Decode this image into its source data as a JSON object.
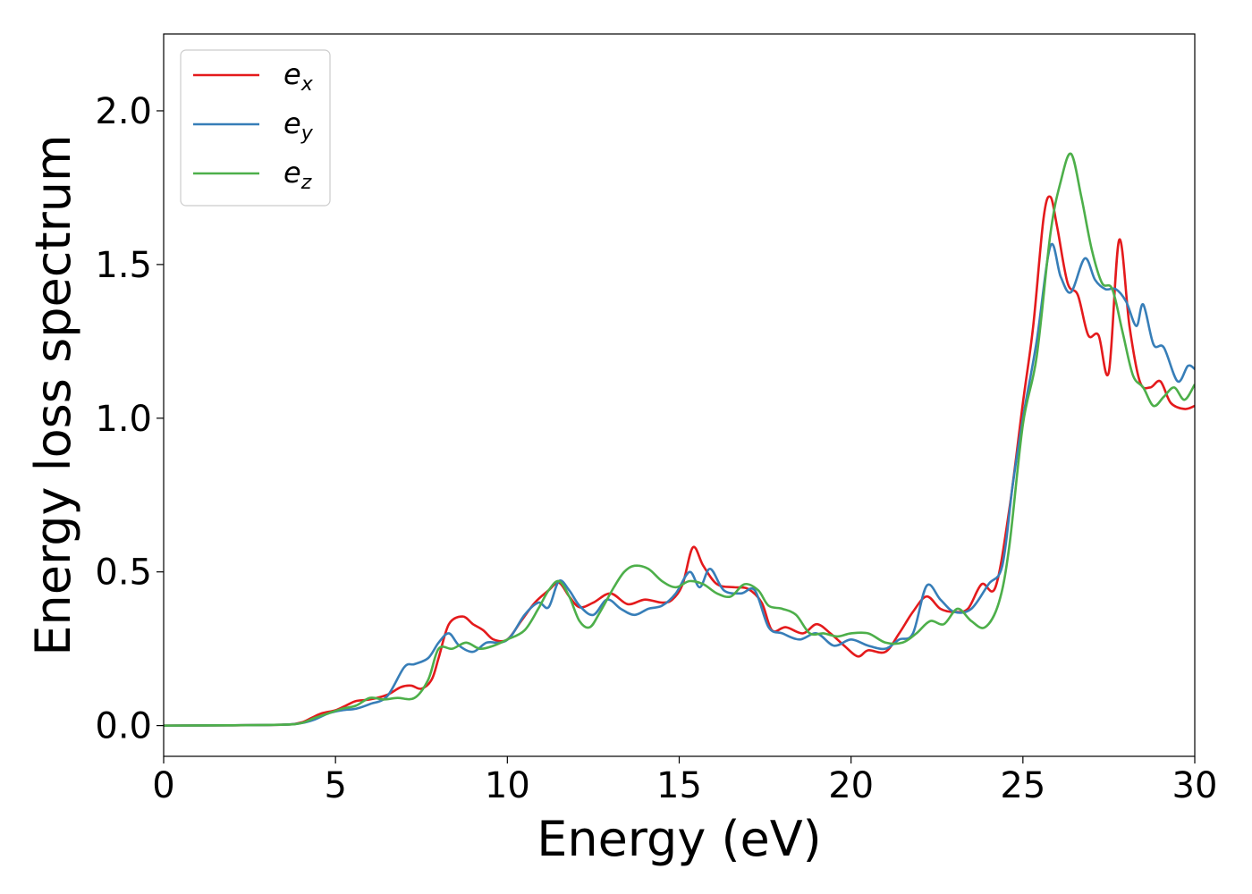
{
  "chart_data": {
    "type": "line",
    "title": "",
    "xlabel": "Energy (eV)",
    "ylabel": "Energy loss spectrum",
    "xlim": [
      0,
      30
    ],
    "ylim": [
      -0.1,
      2.25
    ],
    "xticks": [
      0,
      5,
      10,
      15,
      20,
      25,
      30
    ],
    "xtick_labels": [
      "0",
      "5",
      "10",
      "15",
      "20",
      "25",
      "30"
    ],
    "yticks": [
      0.0,
      0.5,
      1.0,
      1.5,
      2.0
    ],
    "ytick_labels": [
      "0.0",
      "0.5",
      "1.0",
      "1.5",
      "2.0"
    ],
    "grid": false,
    "legend_position": "top-left",
    "series": [
      {
        "name": "e_x",
        "label_base": "e",
        "label_sub": "x",
        "color": "#e41a1c",
        "points": [
          [
            0,
            0
          ],
          [
            2,
            0.001
          ],
          [
            3.5,
            0.003
          ],
          [
            4,
            0.01
          ],
          [
            4.3,
            0.025
          ],
          [
            4.6,
            0.04
          ],
          [
            5,
            0.05
          ],
          [
            5.3,
            0.065
          ],
          [
            5.6,
            0.08
          ],
          [
            6,
            0.085
          ],
          [
            6.5,
            0.1
          ],
          [
            6.9,
            0.125
          ],
          [
            7.2,
            0.13
          ],
          [
            7.5,
            0.12
          ],
          [
            7.8,
            0.15
          ],
          [
            8,
            0.22
          ],
          [
            8.3,
            0.33
          ],
          [
            8.7,
            0.355
          ],
          [
            9,
            0.33
          ],
          [
            9.3,
            0.31
          ],
          [
            9.6,
            0.28
          ],
          [
            10,
            0.28
          ],
          [
            10.4,
            0.34
          ],
          [
            10.8,
            0.4
          ],
          [
            11.2,
            0.44
          ],
          [
            11.5,
            0.465
          ],
          [
            11.8,
            0.42
          ],
          [
            12.1,
            0.385
          ],
          [
            12.5,
            0.4
          ],
          [
            13,
            0.43
          ],
          [
            13.5,
            0.395
          ],
          [
            14,
            0.41
          ],
          [
            14.5,
            0.4
          ],
          [
            14.8,
            0.41
          ],
          [
            15.1,
            0.46
          ],
          [
            15.4,
            0.58
          ],
          [
            15.7,
            0.52
          ],
          [
            16.1,
            0.46
          ],
          [
            16.6,
            0.45
          ],
          [
            17,
            0.445
          ],
          [
            17.4,
            0.4
          ],
          [
            17.7,
            0.31
          ],
          [
            18.1,
            0.32
          ],
          [
            18.6,
            0.3
          ],
          [
            19,
            0.33
          ],
          [
            19.4,
            0.3
          ],
          [
            19.8,
            0.26
          ],
          [
            20.2,
            0.225
          ],
          [
            20.5,
            0.245
          ],
          [
            21,
            0.24
          ],
          [
            21.4,
            0.3
          ],
          [
            21.8,
            0.37
          ],
          [
            22.2,
            0.42
          ],
          [
            22.6,
            0.38
          ],
          [
            23,
            0.37
          ],
          [
            23.4,
            0.38
          ],
          [
            23.8,
            0.46
          ],
          [
            24.2,
            0.45
          ],
          [
            24.6,
            0.7
          ],
          [
            25,
            1.05
          ],
          [
            25.3,
            1.3
          ],
          [
            25.6,
            1.65
          ],
          [
            25.8,
            1.72
          ],
          [
            26,
            1.62
          ],
          [
            26.3,
            1.44
          ],
          [
            26.6,
            1.4
          ],
          [
            26.9,
            1.27
          ],
          [
            27.2,
            1.27
          ],
          [
            27.5,
            1.15
          ],
          [
            27.8,
            1.58
          ],
          [
            28.1,
            1.3
          ],
          [
            28.4,
            1.12
          ],
          [
            28.7,
            1.1
          ],
          [
            29,
            1.12
          ],
          [
            29.3,
            1.05
          ],
          [
            29.7,
            1.03
          ],
          [
            30,
            1.04
          ]
        ]
      },
      {
        "name": "e_y",
        "label_base": "e",
        "label_sub": "y",
        "color": "#377eb8",
        "points": [
          [
            0,
            0
          ],
          [
            2,
            0.001
          ],
          [
            3.5,
            0.003
          ],
          [
            4,
            0.008
          ],
          [
            4.4,
            0.02
          ],
          [
            4.8,
            0.04
          ],
          [
            5.2,
            0.05
          ],
          [
            5.6,
            0.055
          ],
          [
            6,
            0.07
          ],
          [
            6.5,
            0.095
          ],
          [
            7,
            0.19
          ],
          [
            7.3,
            0.2
          ],
          [
            7.7,
            0.22
          ],
          [
            8,
            0.27
          ],
          [
            8.3,
            0.3
          ],
          [
            8.6,
            0.26
          ],
          [
            9,
            0.24
          ],
          [
            9.4,
            0.27
          ],
          [
            9.8,
            0.27
          ],
          [
            10.1,
            0.29
          ],
          [
            10.5,
            0.36
          ],
          [
            10.9,
            0.4
          ],
          [
            11.2,
            0.385
          ],
          [
            11.5,
            0.47
          ],
          [
            11.8,
            0.44
          ],
          [
            12.1,
            0.39
          ],
          [
            12.5,
            0.36
          ],
          [
            12.9,
            0.41
          ],
          [
            13.3,
            0.38
          ],
          [
            13.7,
            0.36
          ],
          [
            14.1,
            0.38
          ],
          [
            14.5,
            0.39
          ],
          [
            14.9,
            0.43
          ],
          [
            15.3,
            0.5
          ],
          [
            15.6,
            0.45
          ],
          [
            15.9,
            0.51
          ],
          [
            16.3,
            0.44
          ],
          [
            16.8,
            0.43
          ],
          [
            17.2,
            0.44
          ],
          [
            17.6,
            0.32
          ],
          [
            18,
            0.3
          ],
          [
            18.5,
            0.28
          ],
          [
            19,
            0.3
          ],
          [
            19.5,
            0.26
          ],
          [
            20,
            0.28
          ],
          [
            20.5,
            0.26
          ],
          [
            21,
            0.25
          ],
          [
            21.4,
            0.28
          ],
          [
            21.8,
            0.3
          ],
          [
            22.2,
            0.455
          ],
          [
            22.6,
            0.41
          ],
          [
            23,
            0.37
          ],
          [
            23.5,
            0.38
          ],
          [
            24,
            0.46
          ],
          [
            24.4,
            0.52
          ],
          [
            24.7,
            0.78
          ],
          [
            25,
            1.0
          ],
          [
            25.4,
            1.25
          ],
          [
            25.8,
            1.56
          ],
          [
            26.1,
            1.46
          ],
          [
            26.4,
            1.41
          ],
          [
            26.8,
            1.52
          ],
          [
            27.1,
            1.45
          ],
          [
            27.4,
            1.42
          ],
          [
            27.7,
            1.42
          ],
          [
            28,
            1.38
          ],
          [
            28.3,
            1.3
          ],
          [
            28.5,
            1.37
          ],
          [
            28.8,
            1.24
          ],
          [
            29.1,
            1.23
          ],
          [
            29.5,
            1.12
          ],
          [
            29.8,
            1.17
          ],
          [
            30,
            1.16
          ]
        ]
      },
      {
        "name": "e_z",
        "label_base": "e",
        "label_sub": "z",
        "color": "#4daf4a",
        "points": [
          [
            0,
            0
          ],
          [
            2,
            0.001
          ],
          [
            3.5,
            0.003
          ],
          [
            4,
            0.008
          ],
          [
            4.4,
            0.025
          ],
          [
            4.8,
            0.04
          ],
          [
            5.2,
            0.055
          ],
          [
            5.6,
            0.065
          ],
          [
            6,
            0.09
          ],
          [
            6.4,
            0.085
          ],
          [
            6.8,
            0.09
          ],
          [
            7.3,
            0.09
          ],
          [
            7.7,
            0.15
          ],
          [
            8,
            0.25
          ],
          [
            8.4,
            0.25
          ],
          [
            8.8,
            0.27
          ],
          [
            9.2,
            0.25
          ],
          [
            9.6,
            0.26
          ],
          [
            10,
            0.28
          ],
          [
            10.5,
            0.31
          ],
          [
            10.9,
            0.38
          ],
          [
            11.2,
            0.44
          ],
          [
            11.5,
            0.47
          ],
          [
            11.8,
            0.42
          ],
          [
            12.1,
            0.34
          ],
          [
            12.4,
            0.32
          ],
          [
            12.7,
            0.37
          ],
          [
            13.1,
            0.45
          ],
          [
            13.4,
            0.5
          ],
          [
            13.7,
            0.52
          ],
          [
            14.1,
            0.51
          ],
          [
            14.5,
            0.47
          ],
          [
            14.9,
            0.45
          ],
          [
            15.3,
            0.47
          ],
          [
            15.7,
            0.46
          ],
          [
            16.1,
            0.43
          ],
          [
            16.5,
            0.42
          ],
          [
            16.9,
            0.46
          ],
          [
            17.3,
            0.44
          ],
          [
            17.6,
            0.39
          ],
          [
            18,
            0.38
          ],
          [
            18.4,
            0.36
          ],
          [
            18.8,
            0.3
          ],
          [
            19.2,
            0.3
          ],
          [
            19.6,
            0.29
          ],
          [
            20,
            0.3
          ],
          [
            20.5,
            0.3
          ],
          [
            21,
            0.27
          ],
          [
            21.5,
            0.27
          ],
          [
            21.9,
            0.3
          ],
          [
            22.3,
            0.34
          ],
          [
            22.7,
            0.33
          ],
          [
            23.1,
            0.38
          ],
          [
            23.5,
            0.34
          ],
          [
            23.9,
            0.32
          ],
          [
            24.3,
            0.4
          ],
          [
            24.6,
            0.58
          ],
          [
            25,
            0.98
          ],
          [
            25.4,
            1.2
          ],
          [
            25.8,
            1.6
          ],
          [
            26.1,
            1.77
          ],
          [
            26.4,
            1.86
          ],
          [
            26.7,
            1.72
          ],
          [
            27,
            1.55
          ],
          [
            27.3,
            1.44
          ],
          [
            27.6,
            1.42
          ],
          [
            27.9,
            1.28
          ],
          [
            28.2,
            1.14
          ],
          [
            28.5,
            1.1
          ],
          [
            28.8,
            1.04
          ],
          [
            29.1,
            1.07
          ],
          [
            29.4,
            1.1
          ],
          [
            29.7,
            1.06
          ],
          [
            30,
            1.11
          ]
        ]
      }
    ]
  }
}
